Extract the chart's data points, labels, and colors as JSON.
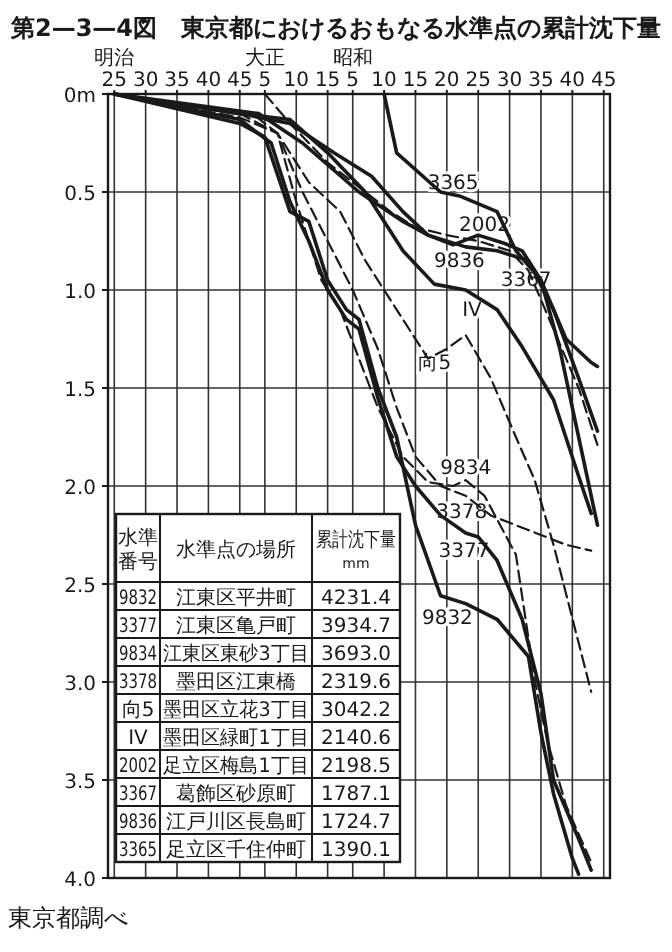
{
  "chart_data": {
    "type": "line",
    "title": "第2—3—4図　東京都におけるおもなる水準点の累計沈下量",
    "xlim": [
      "1891",
      "1971"
    ],
    "ylim": [
      4,
      0
    ],
    "xticks": [
      {
        "value": "1892",
        "label": "25"
      },
      {
        "value": "1897",
        "label": "30"
      },
      {
        "value": "1902",
        "label": "35"
      },
      {
        "value": "1907",
        "label": "40"
      },
      {
        "value": "1912",
        "label": "45"
      },
      {
        "value": "1916",
        "label": "5"
      },
      {
        "value": "1921",
        "label": "10"
      },
      {
        "value": "1926",
        "label": "15"
      },
      {
        "value": "1930",
        "label": "5"
      },
      {
        "value": "1935",
        "label": "10"
      },
      {
        "value": "1940",
        "label": "15"
      },
      {
        "value": "1945",
        "label": "20"
      },
      {
        "value": "1950",
        "label": "25"
      },
      {
        "value": "1955",
        "label": "30"
      },
      {
        "value": "1960",
        "label": "35"
      },
      {
        "value": "1965",
        "label": "40"
      },
      {
        "value": "1970",
        "label": "45"
      }
    ],
    "yticks": [
      {
        "value": 0,
        "label": "0m"
      },
      {
        "value": 0.5,
        "label": "0.5"
      },
      {
        "value": 1,
        "label": "1.0"
      },
      {
        "value": 1.5,
        "label": "1.5"
      },
      {
        "value": 2,
        "label": "2.0"
      },
      {
        "value": 2.5,
        "label": "2.5"
      },
      {
        "value": 3,
        "label": "3.0"
      },
      {
        "value": 3.5,
        "label": "3.5"
      },
      {
        "value": 4,
        "label": "4.0"
      }
    ],
    "grid": true,
    "line_style": "solid",
    "series": [
      {
        "name": "9832",
        "color": "#1a1a1a",
        "x": [
          "1892",
          "1912",
          "1916",
          "1920",
          "1923",
          "1926",
          "1929",
          "1931",
          "1934",
          "1937",
          "1940",
          "1944",
          "1948",
          "1953",
          "1958",
          "1960",
          "1962",
          "1965",
          "1966"
        ],
        "values": [
          0,
          0.15,
          0.22,
          0.6,
          0.65,
          0.95,
          1.1,
          1.15,
          1.5,
          1.75,
          2.2,
          2.56,
          2.6,
          2.68,
          2.87,
          3.26,
          3.57,
          3.9,
          3.98
        ]
      },
      {
        "name": "3377",
        "color": "#1a1a1a",
        "x": [
          "1892",
          "1912",
          "1917",
          "1920",
          "1923",
          "1926",
          "1929",
          "1931",
          "1934",
          "1937",
          "1940",
          "1944",
          "1948",
          "1950",
          "1953",
          "1957",
          "1960",
          "1962",
          "1966",
          "1968"
        ],
        "values": [
          0,
          0.13,
          0.25,
          0.55,
          0.75,
          1.0,
          1.15,
          1.2,
          1.55,
          1.85,
          2.0,
          2.15,
          2.24,
          2.26,
          2.38,
          2.68,
          3.06,
          3.5,
          3.8,
          3.96
        ]
      },
      {
        "name": "9834",
        "color": "#1a1a1a",
        "line_style": "dashed",
        "x": [
          "1892",
          "1914",
          "1918",
          "1921",
          "1925",
          "1928",
          "1931",
          "1934",
          "1938",
          "1942",
          "1946",
          "1948",
          "1951",
          "1956",
          "1959",
          "1961",
          "1964",
          "1968"
        ],
        "values": [
          0,
          0.1,
          0.2,
          0.55,
          0.95,
          1.1,
          1.35,
          1.6,
          1.85,
          1.98,
          2.0,
          1.97,
          2.05,
          2.35,
          2.99,
          3.3,
          3.63,
          3.92
        ]
      },
      {
        "name": "3378",
        "color": "#1a1a1a",
        "line_style": "dashed",
        "x": [
          "1892",
          "1912",
          "1918",
          "1922",
          "1926",
          "1930",
          "1934",
          "1937",
          "1940",
          "1944",
          "1948",
          "1952",
          "1956",
          "1960",
          "1964",
          "1968"
        ],
        "values": [
          0,
          0.1,
          0.2,
          0.5,
          0.75,
          1.0,
          1.3,
          1.6,
          1.85,
          2.0,
          2.05,
          2.15,
          2.2,
          2.25,
          2.3,
          2.33
        ]
      },
      {
        "name": "向5",
        "color": "#1a1a1a",
        "line_style": "dashed",
        "x": [
          "1892",
          "1912",
          "1918",
          "1923",
          "1928",
          "1932",
          "1937",
          "1942",
          "1945",
          "1948",
          "1952",
          "1956",
          "1959",
          "1962",
          "1966",
          "1968"
        ],
        "values": [
          0,
          0.12,
          0.2,
          0.45,
          0.6,
          0.85,
          1.1,
          1.35,
          1.3,
          1.23,
          1.45,
          1.75,
          1.97,
          2.3,
          2.8,
          3.05
        ]
      },
      {
        "name": "IV",
        "color": "#1a1a1a",
        "x": [
          "1892",
          "1912",
          "1920",
          "1926",
          "1932",
          "1938",
          "1943",
          "1948",
          "1953",
          "1957",
          "1962",
          "1966",
          "1968"
        ],
        "values": [
          0,
          0.1,
          0.13,
          0.3,
          0.5,
          0.8,
          0.97,
          1.0,
          1.1,
          1.29,
          1.56,
          1.95,
          2.14
        ]
      },
      {
        "name": "2002",
        "color": "#1a1a1a",
        "x": [
          "1892",
          "1912",
          "1920",
          "1927",
          "1933",
          "1938",
          "1942",
          "1946",
          "1950",
          "1954",
          "1957",
          "1960",
          "1963",
          "1966",
          "1969"
        ],
        "values": [
          0,
          0.1,
          0.15,
          0.3,
          0.42,
          0.6,
          0.72,
          0.77,
          0.72,
          0.76,
          0.8,
          0.95,
          1.3,
          1.75,
          2.2
        ]
      },
      {
        "name": "3367",
        "color": "#1a1a1a",
        "line_style": "dashed",
        "x": [
          "1916",
          "1920",
          "1926",
          "1932",
          "1936",
          "1940",
          "1945",
          "1950",
          "1955",
          "1958",
          "1962",
          "1966",
          "1969"
        ],
        "values": [
          0,
          0.15,
          0.35,
          0.5,
          0.6,
          0.68,
          0.72,
          0.75,
          0.8,
          0.9,
          1.2,
          1.5,
          1.79
        ]
      },
      {
        "name": "9836",
        "color": "#1a1a1a",
        "x": [
          "1892",
          "1915",
          "1922",
          "1931",
          "1938",
          "1942",
          "1948",
          "1953",
          "1958",
          "1962",
          "1966",
          "1969"
        ],
        "values": [
          0,
          0.1,
          0.25,
          0.5,
          0.65,
          0.72,
          0.78,
          0.8,
          0.85,
          1.1,
          1.45,
          1.72
        ]
      },
      {
        "name": "3365",
        "color": "#1a1a1a",
        "x": [
          "1935",
          "1937",
          "1944",
          "1947",
          "1953",
          "1956",
          "1960",
          "1964",
          "1968",
          "1969"
        ],
        "values": [
          0,
          0.3,
          0.5,
          0.52,
          0.6,
          0.8,
          0.95,
          1.25,
          1.37,
          1.39
        ]
      }
    ],
    "annotations": [
      "東京都調べ",
      "明治",
      "大正",
      "昭和",
      "水準番号",
      "水準点の場所",
      "累計沈下量",
      "mm",
      "9832",
      "江東区平井町",
      "4231.4",
      "3377",
      "江東区亀戸町",
      "3934.7",
      "9834",
      "江東区東砂3丁目",
      "3693.0",
      "3378",
      "墨田区江東橋",
      "2319.6",
      "向5",
      "墨田区立花3丁目",
      "3042.2",
      "IV",
      "墨田区緑町1丁目",
      "2140.6",
      "2002",
      "足立区梅島1丁目",
      "2198.5",
      "3367",
      "葛飾区砂原町",
      "1787.1",
      "9836",
      "江戸川区長島町",
      "1724.7",
      "3365",
      "足立区千住仲町",
      "1390.1"
    ]
  }
}
